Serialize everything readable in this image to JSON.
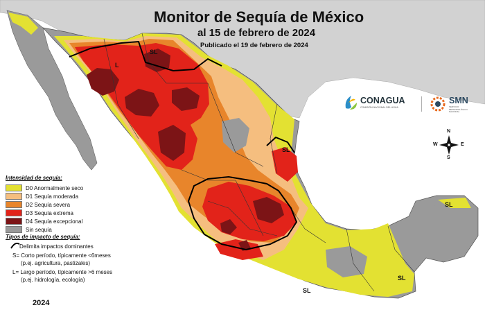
{
  "title": "Monitor de Sequía de México",
  "subtitle": "al 15 de febrero de 2024",
  "published": "Publicado el 19 de febrero de 2024",
  "year_label": "2024",
  "colors": {
    "ocean": "#ffffff",
    "land_outside": "#d2d2d2",
    "no_drought": "#9a9a9a",
    "D0": "#e3e132",
    "D1": "#f5be7f",
    "D2": "#e8852b",
    "D3": "#e2231a",
    "D4": "#7c1416",
    "impact_line": "#000000"
  },
  "legend": {
    "title": "Intensidad de sequía:",
    "items": [
      {
        "code": "D0",
        "label": "D0 Anormalmente seco",
        "color": "#e3e132"
      },
      {
        "code": "D1",
        "label": "D1 Sequía moderada",
        "color": "#f5be7f"
      },
      {
        "code": "D2",
        "label": "D2 Sequía severa",
        "color": "#e8852b"
      },
      {
        "code": "D3",
        "label": "D3 Sequía extrema",
        "color": "#e2231a"
      },
      {
        "code": "D4",
        "label": "D4 Sequía excepcional",
        "color": "#7c1416"
      },
      {
        "code": "none",
        "label": "Sin sequía",
        "color": "#9a9a9a"
      }
    ]
  },
  "impacts": {
    "title": "Tipos de impacto de sequía:",
    "line_label": "Delimita impactos dominantes",
    "s_line1": "S= Corto período, típicamente <6meses",
    "s_line2": "(p.ej. agricultura, pastizales)",
    "l_line1": "L= Largo período, típicamente >6 meses",
    "l_line2": "(p.ej. hidrología, ecología)"
  },
  "region_labels": [
    {
      "id": "sl-sonora-chihuahua",
      "text": "SL"
    },
    {
      "id": "l-sonora",
      "text": "L"
    },
    {
      "id": "sl-tamaulipas",
      "text": "SL"
    },
    {
      "id": "sl-yucatan",
      "text": "SL"
    },
    {
      "id": "sl-oaxaca",
      "text": "SL"
    },
    {
      "id": "sl-chiapas",
      "text": "SL"
    }
  ],
  "compass": {
    "n": "N",
    "s": "S",
    "e": "E",
    "w": "W"
  },
  "logos": {
    "conagua": "CONAGUA",
    "conagua_sub": "COMISIÓN NACIONAL DEL AGUA",
    "smn": "SMN",
    "smn_sub": "SERVICIO METEOROLÓGICO NACIONAL"
  }
}
